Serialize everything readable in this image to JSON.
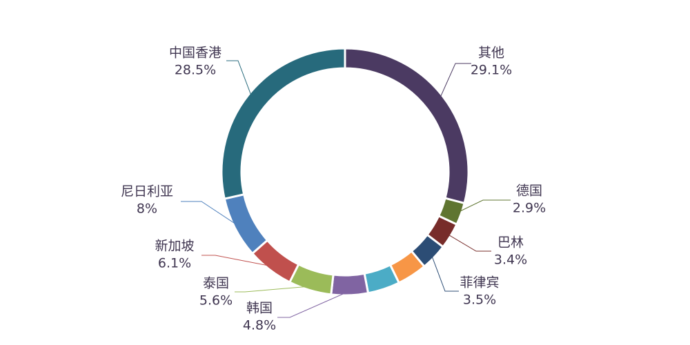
{
  "chart_data": {
    "type": "pie",
    "variant": "donut",
    "title": "",
    "start": "top",
    "direction": "clockwise",
    "slices": [
      {
        "label": "其他",
        "value": 29.1,
        "value_label": "29.1%",
        "color": "#4b3a62"
      },
      {
        "label": "德国",
        "value": 2.9,
        "value_label": "2.9%",
        "color": "#5f7530"
      },
      {
        "label": "巴林",
        "value": 3.4,
        "value_label": "3.4%",
        "color": "#772c2a"
      },
      {
        "label": "菲律宾",
        "value": 3.5,
        "value_label": "3.5%",
        "color": "#2c4d75"
      },
      {
        "label": null,
        "value": 3.9,
        "value_label": null,
        "color": "#f79646"
      },
      {
        "label": null,
        "value": 4.2,
        "value_label": null,
        "color": "#4bacc6"
      },
      {
        "label": "韩国",
        "value": 4.8,
        "value_label": "4.8%",
        "color": "#8064a2"
      },
      {
        "label": "泰国",
        "value": 5.6,
        "value_label": "5.6%",
        "color": "#9bbb59"
      },
      {
        "label": "新加坡",
        "value": 6.1,
        "value_label": "6.1%",
        "color": "#c0504d"
      },
      {
        "label": "尼日利亚",
        "value": 8,
        "value_label": "8%",
        "color": "#4f81bd"
      },
      {
        "label": "中国香港",
        "value": 28.5,
        "value_label": "28.5%",
        "color": "#276a7c"
      }
    ]
  }
}
